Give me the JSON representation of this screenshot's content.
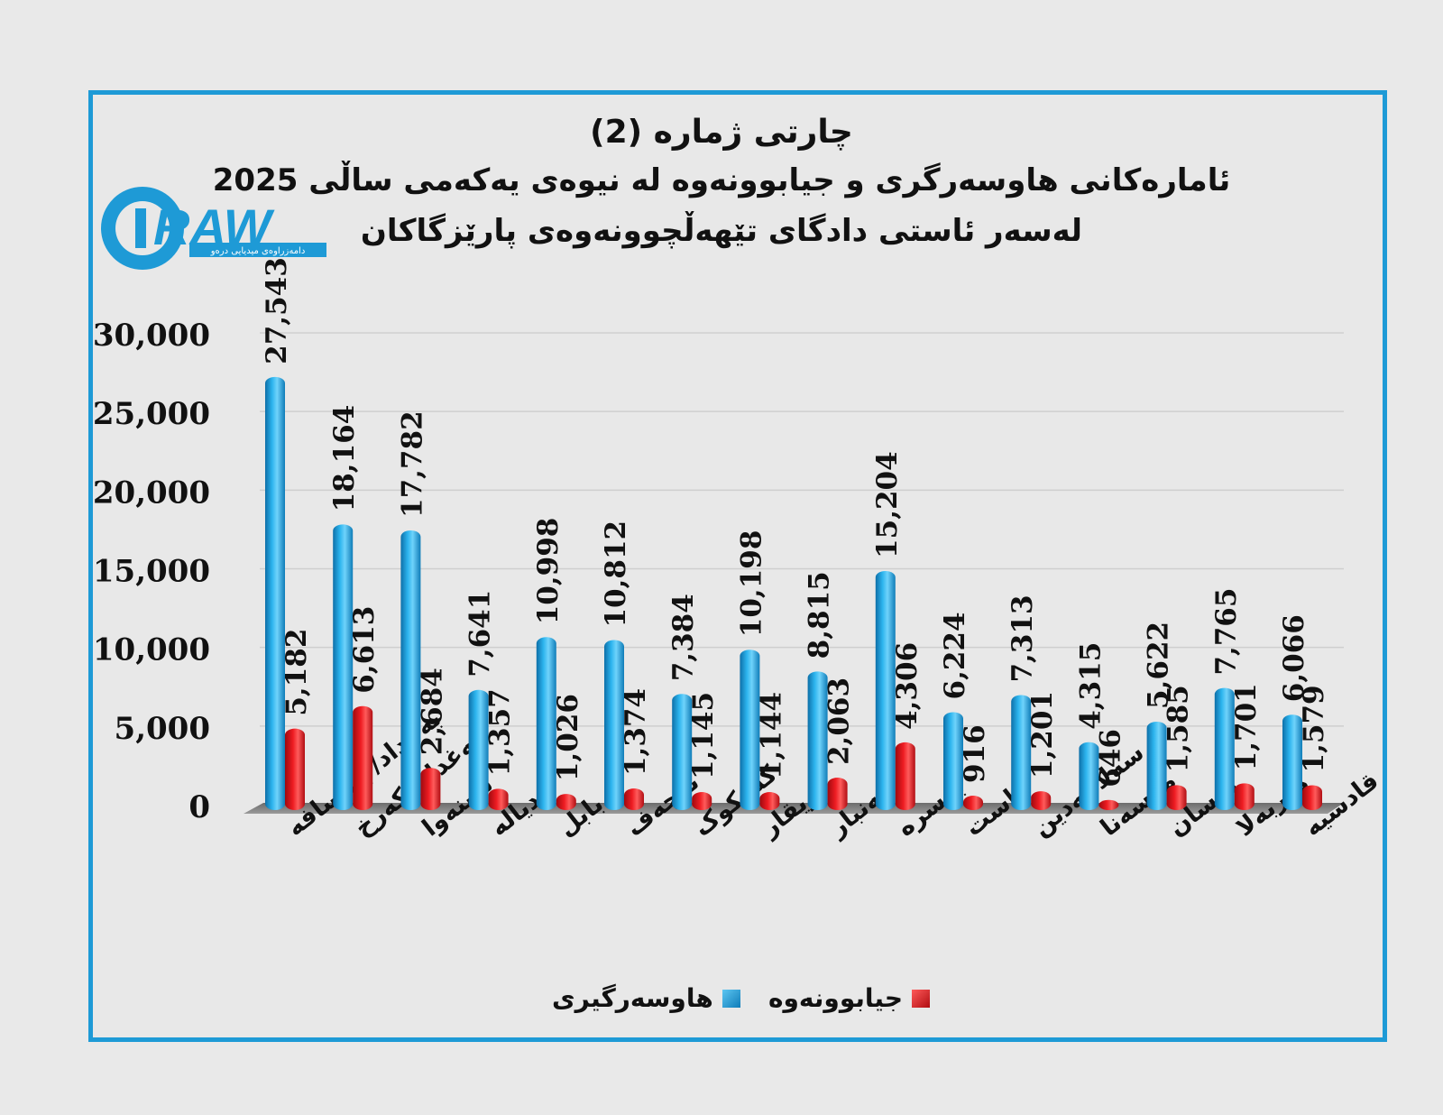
{
  "titles": {
    "line1": "چارتی ژمارە (2)",
    "line2": "ئامارەکانی هاوسەرگری و جیابوونەوە لە نیوەی یەکەمی ساڵی 2025",
    "line3": "لەسەر ئاستی دادگای تێهەڵچوونەوەی پارێزگاکان"
  },
  "logo": {
    "text": "DRAW",
    "subtitle": "دامەزراوەی میدیایی درەو"
  },
  "colors": {
    "frame": "#1e9ad6",
    "series1": "#1aa0e0",
    "series2": "#e3161c"
  },
  "chart_data": {
    "type": "bar",
    "ylim": [
      0,
      30000
    ],
    "yticks": [
      "0",
      "5,000",
      "10,000",
      "15,000",
      "20,000",
      "25,000",
      "30,000"
    ],
    "grid": true,
    "legend_position": "bottom",
    "categories": [
      "بەغداد/ ڕەسافە",
      "بەغداد/ کەرخ",
      "نەینەوا",
      "دیالە",
      "بابل",
      "نەجەف",
      "کەرکوک",
      "زیقار",
      "ئەنبار",
      "بەسرە",
      "واست",
      "سەلاحەدین",
      "موسەنا",
      "میسان",
      "کەربەلا",
      "قادسیە"
    ],
    "series": [
      {
        "name": "هاوسەرگیری",
        "values": [
          27543,
          18164,
          17782,
          7641,
          10998,
          10812,
          7384,
          10198,
          8815,
          15204,
          6224,
          7313,
          4315,
          5622,
          7765,
          6066
        ],
        "labels": [
          "27,543",
          "18,164",
          "17,782",
          "7,641",
          "10,998",
          "10,812",
          "7,384",
          "10,198",
          "8,815",
          "15,204",
          "6,224",
          "7,313",
          "4,315",
          "5,622",
          "7,765",
          "6,066"
        ]
      },
      {
        "name": "جیابوونەوە",
        "values": [
          5182,
          6613,
          2684,
          1357,
          1026,
          1374,
          1145,
          1144,
          2063,
          4306,
          916,
          1201,
          646,
          1585,
          1701,
          1579
        ],
        "labels": [
          "5,182",
          "6,613",
          "2,684",
          "1,357",
          "1,026",
          "1,374",
          "1,145",
          "1,144",
          "2,063",
          "4,306",
          "916",
          "1,201",
          "646",
          "1,585",
          "1,701",
          "1,579"
        ]
      }
    ]
  }
}
